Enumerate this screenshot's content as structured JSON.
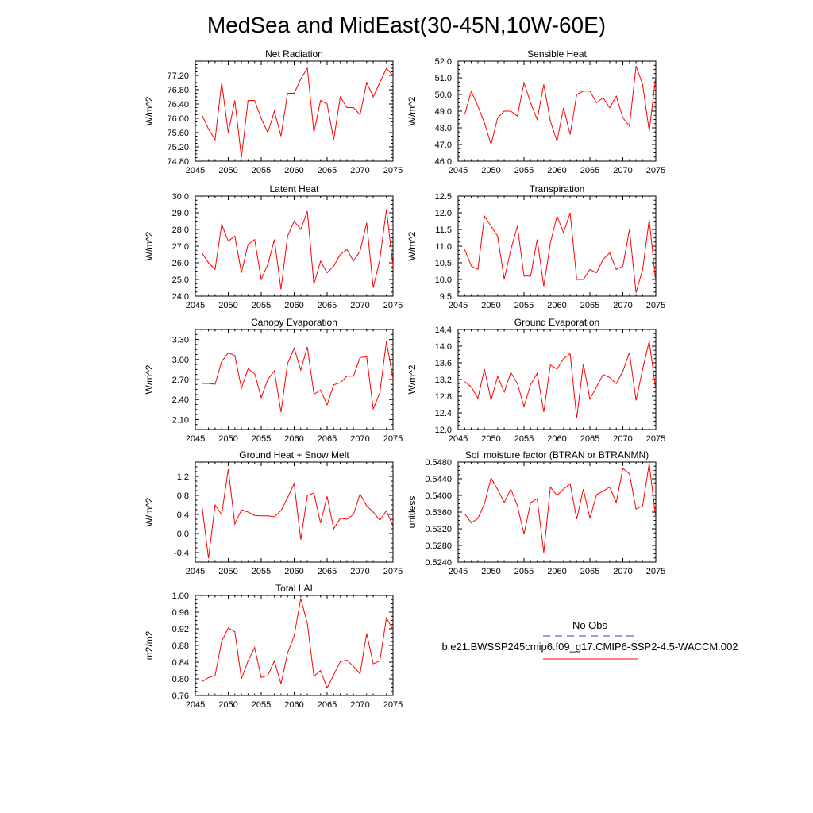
{
  "title": "MedSea and MidEast(30-45N,10W-60E)",
  "x_ticks": [
    2045,
    2050,
    2055,
    2060,
    2065,
    2070,
    2075
  ],
  "x_range": [
    2045,
    2075
  ],
  "legend": {
    "obs_label": "No Obs",
    "obs_color": "#3b3bb3",
    "case_label": "b.e21.BWSSP245cmip6.f09_g17.CMIP6-SSP2-4.5-WACCM.002",
    "case_color": "#ff0000"
  },
  "chart_data": [
    {
      "type": "line",
      "title": "Net Radiation",
      "ylabel": "W/m^2",
      "ylim": [
        74.8,
        77.6
      ],
      "y_ticks": [
        "74.80",
        "75.20",
        "75.60",
        "76.00",
        "76.40",
        "76.80",
        "77.20"
      ],
      "x": [
        2046,
        2047,
        2048,
        2049,
        2050,
        2051,
        2052,
        2053,
        2054,
        2055,
        2056,
        2057,
        2058,
        2059,
        2060,
        2061,
        2062,
        2063,
        2064,
        2065,
        2066,
        2067,
        2068,
        2069,
        2070,
        2071,
        2072,
        2073,
        2074,
        2075
      ],
      "values": [
        76.1,
        75.7,
        75.4,
        77.0,
        75.6,
        76.5,
        74.9,
        76.5,
        76.5,
        76.0,
        75.6,
        76.2,
        75.5,
        76.7,
        76.7,
        77.1,
        77.4,
        75.6,
        76.5,
        76.4,
        75.4,
        76.6,
        76.3,
        76.3,
        76.1,
        77.0,
        76.6,
        77.0,
        77.4,
        77.2
      ]
    },
    {
      "type": "line",
      "title": "Sensible Heat",
      "ylabel": "W/m^2",
      "ylim": [
        46.0,
        52.0
      ],
      "y_ticks": [
        "46.0",
        "47.0",
        "48.0",
        "49.0",
        "50.0",
        "51.0",
        "52.0"
      ],
      "x": [
        2046,
        2047,
        2048,
        2049,
        2050,
        2051,
        2052,
        2053,
        2054,
        2055,
        2056,
        2057,
        2058,
        2059,
        2060,
        2061,
        2062,
        2063,
        2064,
        2065,
        2066,
        2067,
        2068,
        2069,
        2070,
        2071,
        2072,
        2073,
        2074,
        2075
      ],
      "values": [
        48.8,
        50.2,
        49.3,
        48.3,
        47.0,
        48.6,
        49.0,
        49.0,
        48.7,
        50.7,
        49.5,
        48.5,
        50.6,
        48.4,
        47.2,
        49.2,
        47.6,
        50.0,
        50.2,
        50.2,
        49.5,
        49.8,
        49.2,
        49.9,
        48.6,
        48.1,
        51.7,
        50.6,
        47.8,
        51.1
      ]
    },
    {
      "type": "line",
      "title": "Latent Heat",
      "ylabel": "W/m^2",
      "ylim": [
        24.0,
        30.0
      ],
      "y_ticks": [
        "24.0",
        "25.0",
        "26.0",
        "27.0",
        "28.0",
        "29.0",
        "30.0"
      ],
      "x": [
        2046,
        2047,
        2048,
        2049,
        2050,
        2051,
        2052,
        2053,
        2054,
        2055,
        2056,
        2057,
        2058,
        2059,
        2060,
        2061,
        2062,
        2063,
        2064,
        2065,
        2066,
        2067,
        2068,
        2069,
        2070,
        2071,
        2072,
        2073,
        2074,
        2075
      ],
      "values": [
        26.6,
        26.0,
        25.6,
        28.3,
        27.3,
        27.6,
        25.4,
        27.1,
        27.4,
        25.0,
        25.9,
        27.4,
        24.4,
        27.6,
        28.5,
        28.0,
        29.1,
        24.7,
        26.1,
        25.4,
        25.8,
        26.5,
        26.8,
        26.1,
        26.7,
        28.4,
        24.5,
        26.2,
        29.2,
        25.8
      ]
    },
    {
      "type": "line",
      "title": "Transpiration",
      "ylabel": "W/m^2",
      "ylim": [
        9.5,
        12.5
      ],
      "y_ticks": [
        "9.5",
        "10.0",
        "10.5",
        "11.0",
        "11.5",
        "12.0",
        "12.5"
      ],
      "x": [
        2046,
        2047,
        2048,
        2049,
        2050,
        2051,
        2052,
        2053,
        2054,
        2055,
        2056,
        2057,
        2058,
        2059,
        2060,
        2061,
        2062,
        2063,
        2064,
        2065,
        2066,
        2067,
        2068,
        2069,
        2070,
        2071,
        2072,
        2073,
        2074,
        2075
      ],
      "values": [
        10.9,
        10.4,
        10.3,
        11.9,
        11.6,
        11.3,
        10.0,
        10.9,
        11.6,
        10.1,
        10.1,
        11.2,
        9.8,
        11.1,
        11.9,
        11.4,
        12.0,
        10.0,
        10.0,
        10.3,
        10.2,
        10.6,
        10.8,
        10.3,
        10.4,
        11.5,
        9.6,
        10.3,
        11.8,
        9.9
      ]
    },
    {
      "type": "line",
      "title": "Canopy Evaporation",
      "ylabel": "W/m^2",
      "ylim": [
        1.95,
        3.45
      ],
      "y_ticks": [
        "2.10",
        "2.40",
        "2.70",
        "3.00",
        "3.30"
      ],
      "x": [
        2046,
        2047,
        2048,
        2049,
        2050,
        2051,
        2052,
        2053,
        2054,
        2055,
        2056,
        2057,
        2058,
        2059,
        2060,
        2061,
        2062,
        2063,
        2064,
        2065,
        2066,
        2067,
        2068,
        2069,
        2070,
        2071,
        2072,
        2073,
        2074,
        2075
      ],
      "values": [
        2.64,
        2.64,
        2.63,
        2.97,
        3.1,
        3.06,
        2.57,
        2.86,
        2.79,
        2.43,
        2.7,
        2.83,
        2.21,
        2.94,
        3.17,
        2.84,
        3.19,
        2.48,
        2.54,
        2.32,
        2.62,
        2.65,
        2.75,
        2.75,
        3.03,
        3.04,
        2.26,
        2.5,
        3.27,
        2.71
      ]
    },
    {
      "type": "line",
      "title": "Ground Evaporation",
      "ylabel": "W/m^2",
      "ylim": [
        12.0,
        14.4
      ],
      "y_ticks": [
        "12.0",
        "12.4",
        "12.8",
        "13.2",
        "13.6",
        "14.0",
        "14.4"
      ],
      "x": [
        2046,
        2047,
        2048,
        2049,
        2050,
        2051,
        2052,
        2053,
        2054,
        2055,
        2056,
        2057,
        2058,
        2059,
        2060,
        2061,
        2062,
        2063,
        2064,
        2065,
        2066,
        2067,
        2068,
        2069,
        2070,
        2071,
        2072,
        2073,
        2074,
        2075
      ],
      "values": [
        13.15,
        13.02,
        12.75,
        13.45,
        12.7,
        13.28,
        12.9,
        13.37,
        13.1,
        12.55,
        13.08,
        13.35,
        12.42,
        13.55,
        13.45,
        13.7,
        13.82,
        12.27,
        13.58,
        12.73,
        13.02,
        13.32,
        13.25,
        13.1,
        13.4,
        13.85,
        12.7,
        13.45,
        14.12,
        12.95
      ]
    },
    {
      "type": "line",
      "title": "Ground Heat + Snow Melt",
      "ylabel": "W/m^2",
      "ylim": [
        -0.6,
        1.5
      ],
      "y_ticks": [
        "-0.4",
        "0.0",
        "0.4",
        "0.8",
        "1.2"
      ],
      "x": [
        2046,
        2047,
        2048,
        2049,
        2050,
        2051,
        2052,
        2053,
        2054,
        2055,
        2056,
        2057,
        2058,
        2059,
        2060,
        2061,
        2062,
        2063,
        2064,
        2065,
        2066,
        2067,
        2068,
        2069,
        2070,
        2071,
        2072,
        2073,
        2074,
        2075
      ],
      "values": [
        0.6,
        -0.52,
        0.6,
        0.4,
        1.35,
        0.2,
        0.5,
        0.45,
        0.38,
        0.37,
        0.37,
        0.35,
        0.48,
        0.75,
        1.05,
        -0.13,
        0.8,
        0.85,
        0.22,
        0.78,
        0.1,
        0.32,
        0.3,
        0.4,
        0.83,
        0.58,
        0.45,
        0.28,
        0.48,
        0.15
      ]
    },
    {
      "type": "line",
      "title": "Soil moisture factor (BTRAN or BTRANMN)",
      "ylabel": "unitless",
      "ylim": [
        0.524,
        0.548
      ],
      "y_ticks": [
        "0.5240",
        "0.5280",
        "0.5320",
        "0.5360",
        "0.5400",
        "0.5440",
        "0.5480"
      ],
      "x": [
        2046,
        2047,
        2048,
        2049,
        2050,
        2051,
        2052,
        2053,
        2054,
        2055,
        2056,
        2057,
        2058,
        2059,
        2060,
        2061,
        2062,
        2063,
        2064,
        2065,
        2066,
        2067,
        2068,
        2069,
        2070,
        2071,
        2072,
        2073,
        2074,
        2075
      ],
      "values": [
        0.5356,
        0.5334,
        0.5345,
        0.538,
        0.5442,
        0.5414,
        0.5383,
        0.5415,
        0.5375,
        0.5307,
        0.5383,
        0.5392,
        0.5263,
        0.542,
        0.54,
        0.5415,
        0.5428,
        0.5343,
        0.5415,
        0.5345,
        0.5402,
        0.541,
        0.542,
        0.5383,
        0.5465,
        0.5452,
        0.5367,
        0.5375,
        0.5477,
        0.5345
      ]
    },
    {
      "type": "line",
      "title": "Total LAI",
      "ylabel": "m2/m2",
      "ylim": [
        0.76,
        1.0
      ],
      "y_ticks": [
        "0.76",
        "0.80",
        "0.84",
        "0.88",
        "0.92",
        "0.96",
        "1.00"
      ],
      "x": [
        2046,
        2047,
        2048,
        2049,
        2050,
        2051,
        2052,
        2053,
        2054,
        2055,
        2056,
        2057,
        2058,
        2059,
        2060,
        2061,
        2062,
        2063,
        2064,
        2065,
        2066,
        2067,
        2068,
        2069,
        2070,
        2071,
        2072,
        2073,
        2074,
        2075
      ],
      "values": [
        0.793,
        0.803,
        0.808,
        0.89,
        0.922,
        0.913,
        0.8,
        0.843,
        0.875,
        0.803,
        0.808,
        0.843,
        0.788,
        0.862,
        0.903,
        0.993,
        0.933,
        0.806,
        0.82,
        0.778,
        0.81,
        0.841,
        0.845,
        0.83,
        0.812,
        0.909,
        0.836,
        0.843,
        0.946,
        0.918
      ]
    }
  ]
}
